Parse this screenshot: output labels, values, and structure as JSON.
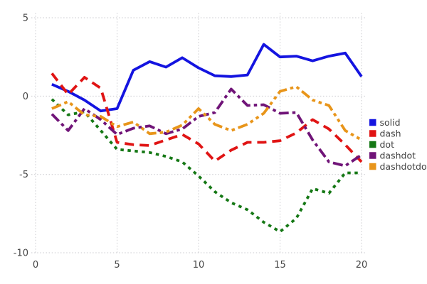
{
  "chart_data": {
    "type": "line",
    "title": "",
    "xlabel": "",
    "ylabel": "",
    "grid": true,
    "legend_position": "right",
    "xlim": [
      0,
      20.5
    ],
    "ylim": [
      -10.6,
      5.6
    ],
    "x_ticks": [
      0,
      5,
      10,
      15,
      20
    ],
    "y_ticks": [
      5,
      0,
      -5,
      -10
    ],
    "x": [
      1,
      2,
      3,
      4,
      5,
      6,
      7,
      8,
      9,
      10,
      11,
      12,
      13,
      14,
      15,
      16,
      17,
      18,
      19,
      20
    ],
    "series": [
      {
        "name": "solid",
        "line_style": "solid",
        "color": "#1414e0",
        "values": [
          0.75,
          0.3,
          -0.25,
          -0.95,
          -0.8,
          1.65,
          2.2,
          1.85,
          2.45,
          1.8,
          1.3,
          1.25,
          1.35,
          3.3,
          2.5,
          2.55,
          2.25,
          2.55,
          2.75,
          1.25
        ]
      },
      {
        "name": "dash",
        "line_style": "dash",
        "color": "#e01414",
        "values": [
          1.45,
          0.1,
          1.2,
          0.5,
          -2.95,
          -3.1,
          -3.15,
          -2.8,
          -2.45,
          -3.05,
          -4.15,
          -3.45,
          -2.95,
          -2.95,
          -2.85,
          -2.35,
          -1.5,
          -2.1,
          -3.1,
          -4.2
        ]
      },
      {
        "name": "dot",
        "line_style": "dot",
        "color": "#157815",
        "values": [
          -0.2,
          -1.2,
          -1.0,
          -2.2,
          -3.4,
          -3.5,
          -3.6,
          -3.85,
          -4.2,
          -5.1,
          -6.1,
          -6.8,
          -7.25,
          -8.05,
          -8.65,
          -7.8,
          -5.9,
          -6.2,
          -4.9,
          -4.9
        ]
      },
      {
        "name": "dashdot",
        "line_style": "dashdot",
        "color": "#701478",
        "values": [
          -1.15,
          -2.2,
          -0.8,
          -1.5,
          -2.45,
          -2.05,
          -1.9,
          -2.4,
          -2.1,
          -1.3,
          -1.05,
          0.45,
          -0.6,
          -0.55,
          -1.1,
          -1.05,
          -2.8,
          -4.2,
          -4.45,
          -3.75
        ]
      },
      {
        "name": "dashdotdot",
        "line_style": "dashdotdot",
        "color": "#e8951a",
        "values": [
          -0.8,
          -0.35,
          -1.2,
          -1.3,
          -1.95,
          -1.65,
          -2.4,
          -2.3,
          -1.85,
          -0.8,
          -1.8,
          -2.2,
          -1.8,
          -1.1,
          0.3,
          0.6,
          -0.25,
          -0.6,
          -2.2,
          -2.8
        ]
      }
    ],
    "legend_items": [
      "solid",
      "dash",
      "dot",
      "dashdot",
      "dashdotdot"
    ],
    "colors": {
      "grid": "#c9c9ce",
      "tick_text": "#464646",
      "legend_text": "#404040",
      "background": "#ffffff"
    }
  }
}
